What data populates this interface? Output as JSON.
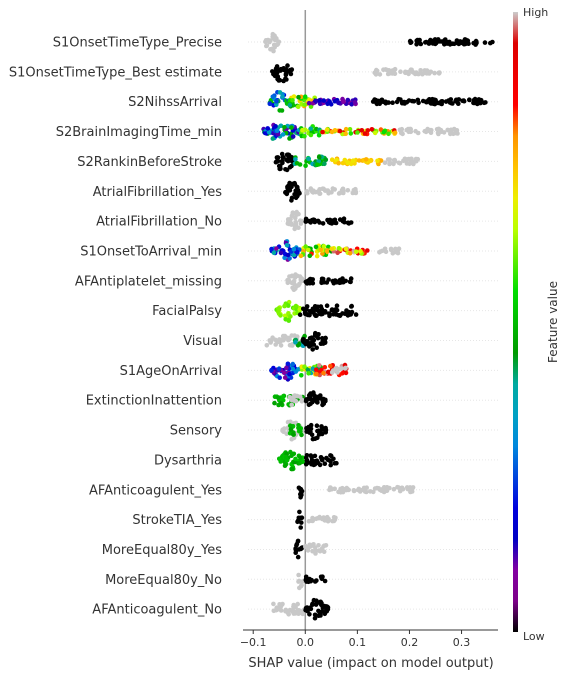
{
  "chart_data": {
    "type": "scatter",
    "subtype": "shap-beeswarm",
    "xlabel": "SHAP value (impact on model output)",
    "xlim": [
      -0.11,
      0.37
    ],
    "x_ticks": [
      -0.1,
      0.0,
      0.1,
      0.2,
      0.3
    ],
    "x_tick_labels": [
      "−0.1",
      "0.0",
      "0.1",
      "0.2",
      "0.3"
    ],
    "zero_line": true,
    "colorbar": {
      "title": "Feature value",
      "high_label": "High",
      "low_label": "Low",
      "colormap": "nipy_spectral",
      "missing_color": "#c8c8c8"
    },
    "features": [
      {
        "name": "S1OnsetTimeType_Precise",
        "clusters": [
          {
            "x": [
              -0.08,
              -0.05
            ],
            "c": "gray",
            "density": 3
          },
          {
            "x": [
              0.2,
              0.36
            ],
            "c": "black",
            "density": 1
          }
        ]
      },
      {
        "name": "S1OnsetTimeType_Best estimate",
        "clusters": [
          {
            "x": [
              -0.065,
              -0.025
            ],
            "c": "black",
            "density": 3
          },
          {
            "x": [
              0.13,
              0.26
            ],
            "c": "gray",
            "density": 1
          }
        ]
      },
      {
        "name": "S2NihssArrival",
        "clusters": [
          {
            "x": [
              -0.07,
              -0.03
            ],
            "c": [
              0.2,
              0.55
            ],
            "density": 3
          },
          {
            "x": [
              -0.03,
              0.02
            ],
            "c": [
              0.4,
              0.8
            ],
            "density": 2
          },
          {
            "x": [
              0.0,
              0.1
            ],
            "c": [
              0.08,
              0.16
            ],
            "density": 1
          },
          {
            "x": [
              0.13,
              0.35
            ],
            "c": "black",
            "density": 1
          }
        ]
      },
      {
        "name": "S2BrainImagingTime_min",
        "clusters": [
          {
            "x": [
              -0.08,
              -0.01
            ],
            "c": [
              0.1,
              0.5
            ],
            "density": 3
          },
          {
            "x": [
              -0.01,
              0.03
            ],
            "c": [
              0.4,
              0.7
            ],
            "density": 2
          },
          {
            "x": [
              0.03,
              0.18
            ],
            "c": [
              0.55,
              0.95
            ],
            "density": 1
          },
          {
            "x": [
              0.18,
              0.3
            ],
            "c": "gray",
            "density": 1
          }
        ]
      },
      {
        "name": "S2RankinBeforeStroke",
        "clusters": [
          {
            "x": [
              -0.06,
              -0.02
            ],
            "c": "black",
            "density": 3
          },
          {
            "x": [
              -0.02,
              0.04
            ],
            "c": [
              0.35,
              0.55
            ],
            "density": 2
          },
          {
            "x": [
              0.05,
              0.15
            ],
            "c": [
              0.7,
              0.78
            ],
            "density": 1
          },
          {
            "x": [
              0.15,
              0.22
            ],
            "c": "gray",
            "density": 1
          }
        ]
      },
      {
        "name": "AtrialFibrillation_Yes",
        "clusters": [
          {
            "x": [
              -0.04,
              -0.01
            ],
            "c": "black",
            "density": 3
          },
          {
            "x": [
              0.0,
              0.1
            ],
            "c": "gray",
            "density": 1
          }
        ]
      },
      {
        "name": "AtrialFibrillation_No",
        "clusters": [
          {
            "x": [
              -0.035,
              -0.005
            ],
            "c": "gray",
            "density": 3
          },
          {
            "x": [
              0.0,
              0.09
            ],
            "c": "black",
            "density": 1
          }
        ]
      },
      {
        "name": "S1OnsetToArrival_min",
        "clusters": [
          {
            "x": [
              -0.065,
              -0.01
            ],
            "c": [
              0.08,
              0.4
            ],
            "density": 3
          },
          {
            "x": [
              -0.01,
              0.05
            ],
            "c": [
              0.45,
              0.85
            ],
            "density": 2
          },
          {
            "x": [
              0.05,
              0.13
            ],
            "c": [
              0.6,
              1.0
            ],
            "density": 1
          },
          {
            "x": [
              0.14,
              0.18
            ],
            "c": "gray",
            "density": 1
          }
        ]
      },
      {
        "name": "AFAntiplatelet_missing",
        "clusters": [
          {
            "x": [
              -0.035,
              -0.005
            ],
            "c": "gray",
            "density": 3
          },
          {
            "x": [
              0.0,
              0.09
            ],
            "c": "black",
            "density": 1
          }
        ]
      },
      {
        "name": "FacialPalsy",
        "clusters": [
          {
            "x": [
              -0.055,
              -0.01
            ],
            "c": [
              0.58,
              0.65
            ],
            "density": 3
          },
          {
            "x": [
              -0.01,
              0.1
            ],
            "c": "black",
            "density": 2
          }
        ]
      },
      {
        "name": "Visual",
        "clusters": [
          {
            "x": [
              -0.075,
              -0.01
            ],
            "c": "gray",
            "density": 2
          },
          {
            "x": [
              -0.02,
              0.0
            ],
            "c": [
              0.35,
              0.5
            ],
            "density": 2
          },
          {
            "x": [
              -0.005,
              0.04
            ],
            "c": "black",
            "density": 3
          }
        ]
      },
      {
        "name": "S1AgeOnArrival",
        "clusters": [
          {
            "x": [
              -0.065,
              -0.01
            ],
            "c": [
              0.08,
              0.35
            ],
            "density": 3
          },
          {
            "x": [
              -0.01,
              0.03
            ],
            "c": [
              0.35,
              0.75
            ],
            "density": 2
          },
          {
            "x": [
              0.02,
              0.08
            ],
            "c": [
              0.8,
              1.0
            ],
            "density": 2
          },
          {
            "x": [
              0.05,
              0.08
            ],
            "c": "gray",
            "density": 1
          }
        ]
      },
      {
        "name": "ExtinctionInattention",
        "clusters": [
          {
            "x": [
              -0.06,
              -0.005
            ],
            "c": [
              0.45,
              0.52
            ],
            "density": 2
          },
          {
            "x": [
              -0.03,
              -0.005
            ],
            "c": "gray",
            "density": 2
          },
          {
            "x": [
              0.0,
              0.04
            ],
            "c": "black",
            "density": 3
          }
        ]
      },
      {
        "name": "Sensory",
        "clusters": [
          {
            "x": [
              -0.045,
              -0.005
            ],
            "c": "gray",
            "density": 3
          },
          {
            "x": [
              -0.03,
              -0.005
            ],
            "c": [
              0.45,
              0.52
            ],
            "density": 2
          },
          {
            "x": [
              0.0,
              0.04
            ],
            "c": "black",
            "density": 3
          }
        ]
      },
      {
        "name": "Dysarthria",
        "clusters": [
          {
            "x": [
              -0.05,
              -0.005
            ],
            "c": [
              0.45,
              0.52
            ],
            "density": 3
          },
          {
            "x": [
              0.0,
              0.06
            ],
            "c": "black",
            "density": 2
          }
        ]
      },
      {
        "name": "AFAnticoagulent_Yes",
        "clusters": [
          {
            "x": [
              -0.015,
              -0.005
            ],
            "c": "black",
            "density": 3
          },
          {
            "x": [
              0.04,
              0.21
            ],
            "c": "gray",
            "density": 1
          }
        ]
      },
      {
        "name": "StrokeTIA_Yes",
        "clusters": [
          {
            "x": [
              -0.015,
              -0.005
            ],
            "c": "black",
            "density": 3
          },
          {
            "x": [
              0.0,
              0.065
            ],
            "c": "gray",
            "density": 1
          }
        ]
      },
      {
        "name": "MoreEqual80y_Yes",
        "clusters": [
          {
            "x": [
              -0.02,
              -0.005
            ],
            "c": "black",
            "density": 3
          },
          {
            "x": [
              0.0,
              0.04
            ],
            "c": "gray",
            "density": 2
          }
        ]
      },
      {
        "name": "MoreEqual80y_No",
        "clusters": [
          {
            "x": [
              -0.015,
              -0.005
            ],
            "c": "gray",
            "density": 3
          },
          {
            "x": [
              0.0,
              0.04
            ],
            "c": "black",
            "density": 1
          }
        ]
      },
      {
        "name": "AFAnticoagulent_No",
        "clusters": [
          {
            "x": [
              -0.065,
              0.0
            ],
            "c": "gray",
            "density": 2
          },
          {
            "x": [
              0.0,
              0.045
            ],
            "c": "black",
            "density": 3
          }
        ]
      }
    ]
  }
}
